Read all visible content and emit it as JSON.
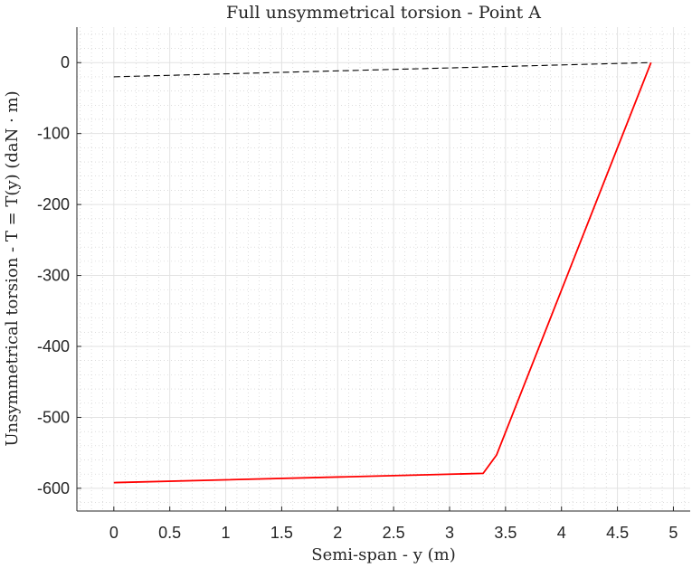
{
  "chart_data": {
    "type": "line",
    "title": "Full unsymmetrical torsion - Point A",
    "xlabel": "Semi-span - y (m)",
    "ylabel": "Unsymmetrical torsion - T = T(y) (daN · m)",
    "xlim": [
      -0.33,
      5.15
    ],
    "ylim": [
      -632,
      50
    ],
    "x_ticks": [
      0,
      0.5,
      1,
      1.5,
      2,
      2.5,
      3,
      3.5,
      4,
      4.5,
      5
    ],
    "x_tick_labels": [
      "0",
      "0.5",
      "1",
      "1.5",
      "2",
      "2.5",
      "3",
      "3.5",
      "4",
      "4.5",
      "5"
    ],
    "y_ticks": [
      0,
      -100,
      -200,
      -300,
      -400,
      -500,
      -600
    ],
    "y_tick_labels": [
      "0",
      "-100",
      "-200",
      "-300",
      "-400",
      "-500",
      "-600"
    ],
    "grid": true,
    "minor_grid": true,
    "series": [
      {
        "style": "solid",
        "color": "#ff0000",
        "x": [
          0,
          3.3,
          3.42,
          4.8
        ],
        "y": [
          -592,
          -579,
          -553,
          0
        ]
      },
      {
        "style": "dashed",
        "color": "#000000",
        "x": [
          0,
          4.8
        ],
        "y": [
          -20,
          0
        ]
      }
    ]
  }
}
